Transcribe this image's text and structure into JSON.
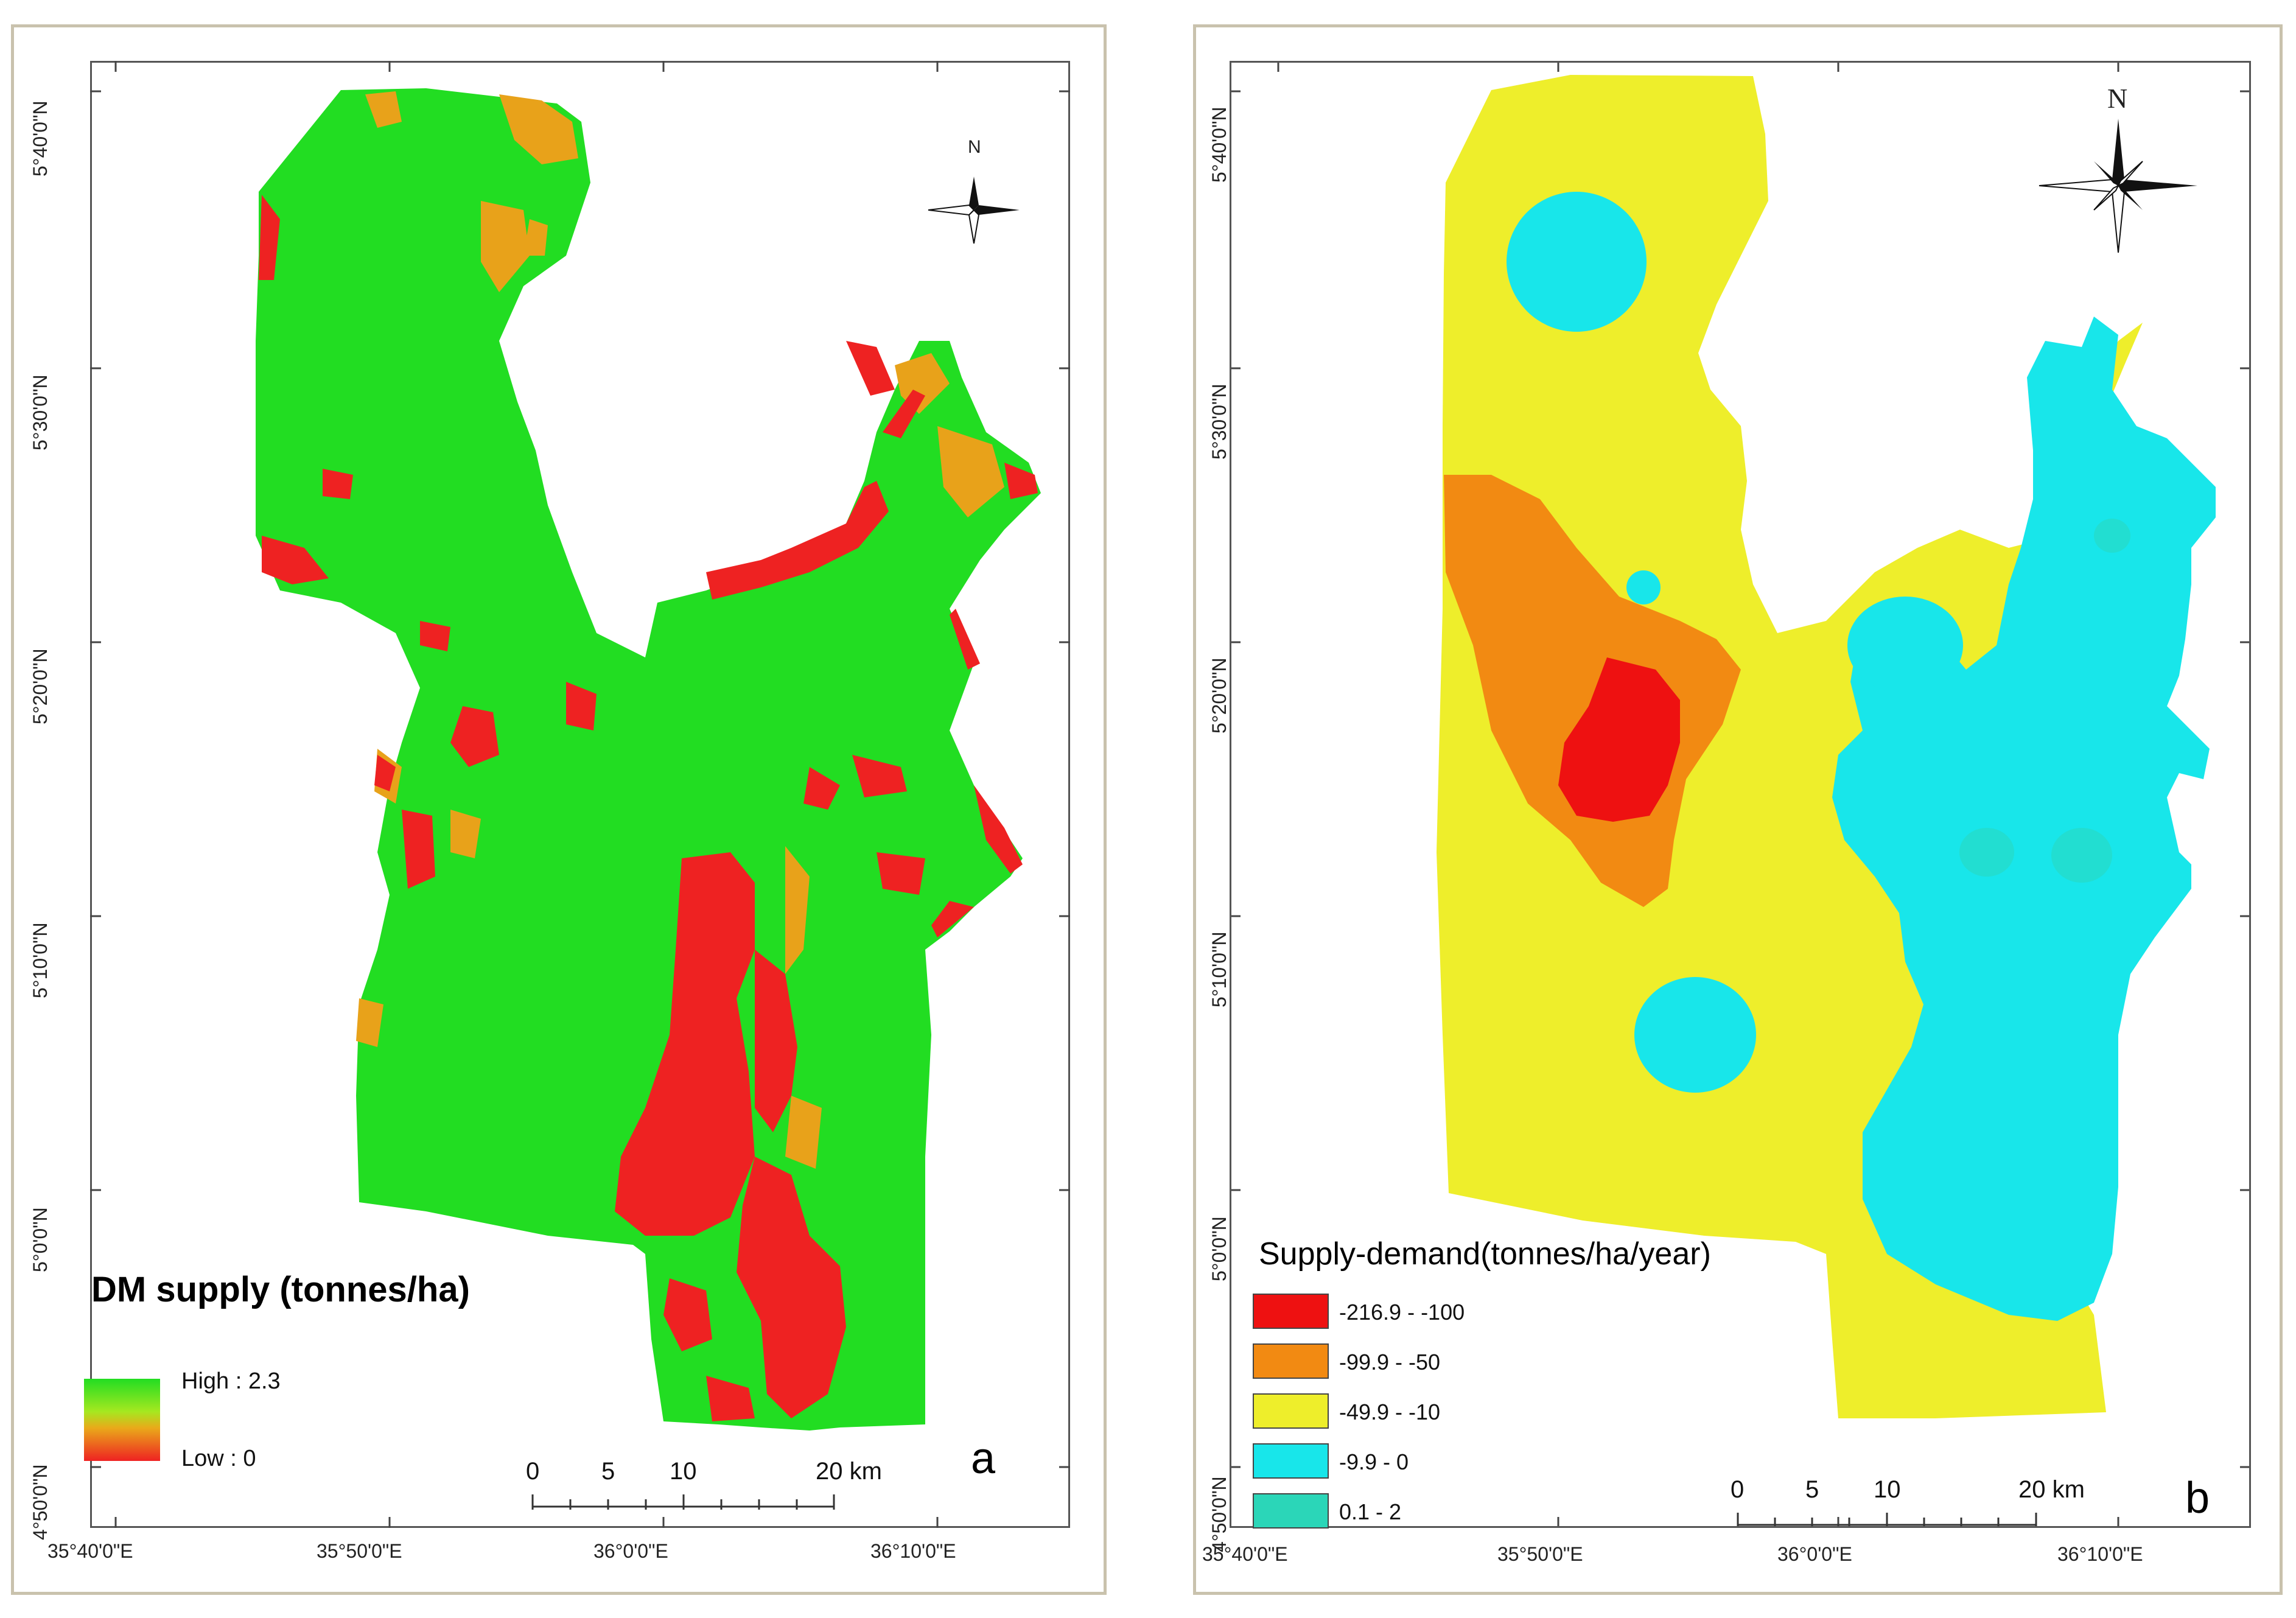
{
  "colors": {
    "green": "#22dd22",
    "orange": "#e8a21a",
    "red": "#ee2222",
    "yellow": "#f1f12a",
    "b_red": "#ee1111",
    "b_orange": "#f28a12",
    "b_yellow": "#eeee2b",
    "b_cyan": "#18e6ea",
    "b_teal": "#2bd6b8"
  },
  "panel_a": {
    "lat_labels": [
      "5°40'0\"N",
      "5°30'0\"N",
      "5°20'0\"N",
      "5°10'0\"N",
      "5°0'0\"N",
      "4°50'0\"N"
    ],
    "lon_labels": [
      "35°40'0\"E",
      "35°50'0\"E",
      "36°0'0\"E",
      "36°10'0\"E"
    ],
    "legend_title": "DM supply (tonnes/ha)",
    "legend_high": "High : 2.3",
    "legend_low": "Low : 0",
    "scale_labels": [
      "0",
      "5",
      "10",
      "20 km"
    ],
    "north_label": "N",
    "panel_letter": "a"
  },
  "panel_b": {
    "lat_labels": [
      "5°40'0\"N",
      "5°30'0\"N",
      "5°20'0\"N",
      "5°10'0\"N",
      "5°0'0\"N",
      "4°50'0\"N"
    ],
    "lon_labels": [
      "35°40'0\"E",
      "35°50'0\"E",
      "36°0'0\"E",
      "36°10'0\"E"
    ],
    "legend_title": "Supply-demand(tonnes/ha/year)",
    "classes": [
      {
        "label": "-216.9 - -100",
        "color": "#ee1111"
      },
      {
        "label": "-99.9 - -50",
        "color": "#f28a12"
      },
      {
        "label": "-49.9 - -10",
        "color": "#eeee2b"
      },
      {
        "label": "-9.9 - 0",
        "color": "#18e6ea"
      },
      {
        "label": "0.1 - 2",
        "color": "#2bd6b8"
      }
    ],
    "scale_labels": [
      "0",
      "5",
      "10",
      "20 km"
    ],
    "north_label": "N",
    "panel_letter": "b"
  }
}
